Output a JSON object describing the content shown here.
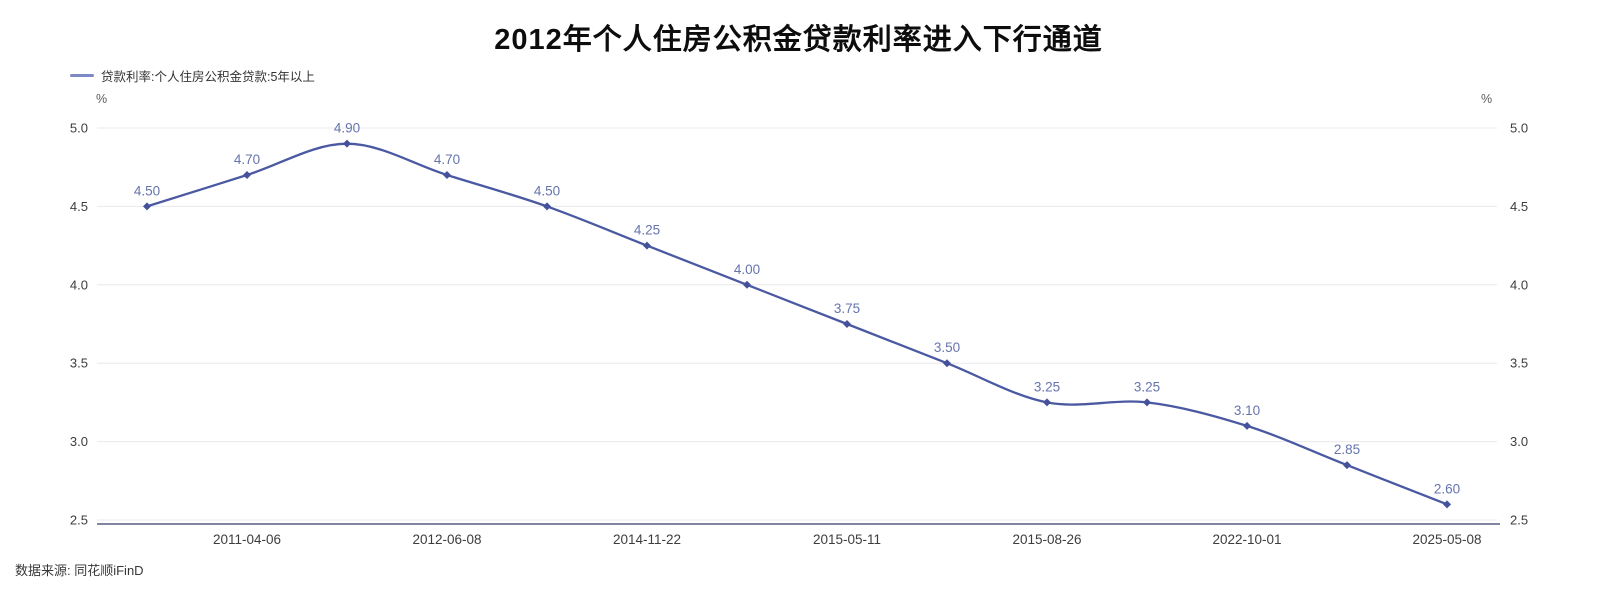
{
  "title": "2012年个人住房公积金贷款利率进入下行通道",
  "legend": {
    "label": "贷款利率:个人住房公积金贷款:5年以上"
  },
  "units": {
    "left": "%",
    "right": "%"
  },
  "source_note": "数据来源: 同花顺iFinD",
  "colors": {
    "series_line": "#4a59a2",
    "marker_fill": "#45529b",
    "point_label": "#6674ae",
    "grid_line": "#e8e8ee",
    "axis_line": "#565d84",
    "tick_text": "#3d3d3d",
    "legend_marker": "#7d89c4"
  },
  "chart_data": {
    "type": "line",
    "smooth": true,
    "grid": true,
    "legend_position": "top-left",
    "series": [
      {
        "name": "贷款利率:个人住房公积金贷款:5年以上",
        "values": [
          4.5,
          4.7,
          4.9,
          4.7,
          4.5,
          4.25,
          4.0,
          3.75,
          3.5,
          3.25,
          3.25,
          3.1,
          2.85,
          2.6
        ],
        "point_labels": [
          "4.50",
          "4.70",
          "4.90",
          "4.70",
          "4.50",
          "4.25",
          "4.00",
          "3.75",
          "3.50",
          "3.25",
          "3.25",
          "3.10",
          "2.85",
          "2.60"
        ]
      }
    ],
    "x_tick_labels": [
      "2011-04-06",
      "2012-06-08",
      "2014-11-22",
      "2015-05-11",
      "2015-08-26",
      "2022-10-01",
      "2025-05-08"
    ],
    "x_tick_point_indices": [
      1,
      3,
      5,
      7,
      9,
      11,
      13
    ],
    "y_ticks_left": [
      "5.0",
      "4.5",
      "4.0",
      "3.5",
      "3.0",
      "2.5"
    ],
    "y_ticks_right": [
      "5.0",
      "4.5",
      "4.0",
      "3.5",
      "3.0",
      "2.5"
    ],
    "ylim": [
      2.5,
      5.0
    ],
    "ylabel_unit": "%"
  }
}
